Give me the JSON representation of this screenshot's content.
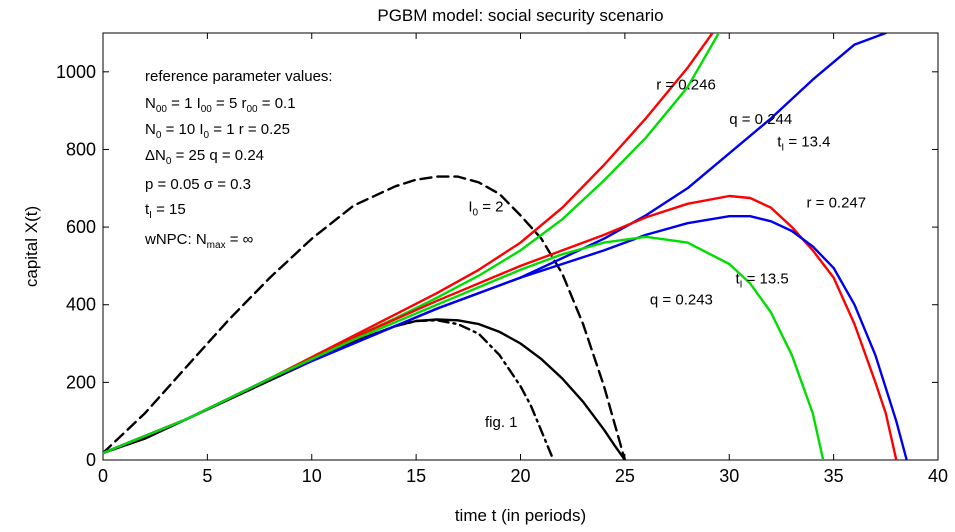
{
  "chart_data": {
    "type": "line",
    "title": "PGBM model: social security scenario",
    "xlabel": "time t (in periods)",
    "ylabel": "capital X(t)",
    "xlim": [
      0,
      40
    ],
    "ylim": [
      0,
      1100
    ],
    "xticks": [
      0,
      5,
      10,
      15,
      20,
      25,
      30,
      35,
      40
    ],
    "yticks": [
      0,
      200,
      400,
      600,
      800,
      1000
    ],
    "grid": false,
    "reference_box": {
      "heading": "reference parameter values:",
      "lines": [
        [
          {
            "t": "N"
          },
          {
            "t": "00",
            "sub": true
          },
          {
            "t": " = 1     I"
          },
          {
            "t": "00",
            "sub": true
          },
          {
            "t": " = 5   r"
          },
          {
            "t": "00",
            "sub": true
          },
          {
            "t": " = 0.1"
          }
        ],
        [
          {
            "t": "N"
          },
          {
            "t": "0",
            "sub": true
          },
          {
            "t": " =   10   I"
          },
          {
            "t": "0",
            "sub": true
          },
          {
            "t": " = 1   r =  0.25"
          }
        ],
        [
          {
            "t": "ΔN"
          },
          {
            "t": "0",
            "sub": true
          },
          {
            "t": " = 25    q = 0.24"
          }
        ],
        [
          {
            "t": "p = 0.05    σ = 0.3"
          }
        ],
        [
          {
            "t": "t"
          },
          {
            "t": "I",
            "sub": true
          },
          {
            "t": " = 15"
          }
        ],
        [
          {
            "t": "wNPC: N"
          },
          {
            "t": "max",
            "sub": true
          },
          {
            "t": " = ∞"
          }
        ]
      ]
    },
    "series": [
      {
        "label": "",
        "color": "#000000",
        "dash": "solid",
        "x": [
          0,
          2,
          4,
          6,
          8,
          10,
          12,
          14,
          15,
          16,
          17,
          18,
          19,
          20,
          21,
          22,
          23,
          24,
          24.5,
          25
        ],
        "y": [
          18,
          55,
          105,
          155,
          205,
          255,
          305,
          345,
          358,
          362,
          360,
          350,
          330,
          300,
          260,
          210,
          150,
          78,
          38,
          0
        ]
      },
      {
        "label": "fig. 1",
        "color": "#000000",
        "dash": "dashdot",
        "x": [
          14,
          15,
          16,
          17,
          18,
          19,
          20,
          20.5,
          21,
          21.5
        ],
        "y": [
          345,
          358,
          360,
          350,
          325,
          270,
          190,
          140,
          75,
          10
        ]
      },
      {
        "label": "I₀ = 2",
        "color": "#000000",
        "dash": "dashed",
        "x": [
          0,
          2,
          4,
          6,
          8,
          10,
          12,
          14,
          15,
          16,
          17,
          18,
          19,
          20,
          21,
          22,
          23,
          24,
          24.5,
          25
        ],
        "y": [
          18,
          120,
          240,
          360,
          470,
          570,
          655,
          705,
          722,
          730,
          730,
          715,
          685,
          630,
          570,
          480,
          350,
          190,
          95,
          0
        ]
      },
      {
        "label": "r = 0.246",
        "color": "#ff0000",
        "dash": "solid",
        "x": [
          0,
          4,
          8,
          12,
          14,
          16,
          18,
          20,
          22,
          24,
          26,
          28,
          29.2
        ],
        "y": [
          18,
          105,
          210,
          320,
          375,
          430,
          490,
          560,
          650,
          760,
          880,
          1010,
          1100
        ]
      },
      {
        "label": "q = 0.244",
        "color": "#00dd00",
        "dash": "solid",
        "x": [
          0,
          4,
          8,
          12,
          14,
          16,
          18,
          20,
          22,
          24,
          26,
          28,
          29.5
        ],
        "y": [
          18,
          105,
          210,
          315,
          365,
          418,
          475,
          540,
          620,
          720,
          830,
          960,
          1100
        ]
      },
      {
        "label": "tᵢ = 13.4",
        "color": "#0000ee",
        "dash": "solid",
        "x": [
          0,
          4,
          8,
          12,
          16,
          20,
          24,
          26,
          28,
          30,
          32,
          34,
          36,
          37.5
        ],
        "y": [
          18,
          105,
          210,
          300,
          390,
          470,
          570,
          630,
          700,
          790,
          880,
          980,
          1070,
          1100
        ]
      },
      {
        "label": "r = 0.247",
        "color": "#ff0000",
        "dash": "solid",
        "x": [
          0,
          4,
          8,
          12,
          16,
          20,
          24,
          26,
          28,
          30,
          31,
          32,
          33,
          34,
          35,
          36,
          37,
          37.5,
          38
        ],
        "y": [
          18,
          105,
          210,
          315,
          410,
          500,
          580,
          625,
          660,
          680,
          675,
          650,
          600,
          540,
          470,
          350,
          200,
          120,
          0
        ]
      },
      {
        "label": "tᵢ = 13.5",
        "color": "#0000ee",
        "dash": "solid",
        "x": [
          0,
          4,
          8,
          12,
          16,
          20,
          24,
          26,
          28,
          30,
          31,
          32,
          33,
          34,
          35,
          36,
          37,
          38,
          38.5
        ],
        "y": [
          18,
          105,
          210,
          300,
          390,
          470,
          540,
          580,
          610,
          628,
          628,
          615,
          590,
          550,
          495,
          400,
          270,
          100,
          0
        ]
      },
      {
        "label": "q = 0.243",
        "color": "#00dd00",
        "dash": "solid",
        "x": [
          0,
          4,
          8,
          12,
          16,
          20,
          22,
          24,
          26,
          28,
          30,
          31,
          32,
          33,
          34,
          34.5
        ],
        "y": [
          18,
          105,
          210,
          310,
          400,
          490,
          530,
          560,
          575,
          560,
          505,
          455,
          380,
          270,
          120,
          0
        ]
      }
    ],
    "annotations": [
      {
        "text": "r = 0.246",
        "x": 26.5,
        "y": 955
      },
      {
        "text": "q = 0.244",
        "x": 30.0,
        "y": 865
      },
      {
        "text": "t",
        "sub": "I",
        "rest": " = 13.4",
        "x": 32.3,
        "y": 808
      },
      {
        "text": "r = 0.247",
        "x": 33.7,
        "y": 650
      },
      {
        "text": "t",
        "sub": "I",
        "rest": " = 13.5",
        "x": 30.3,
        "y": 455
      },
      {
        "text": "q = 0.243",
        "x": 26.2,
        "y": 400
      },
      {
        "text": "I",
        "sub": "0",
        "rest": " = 2",
        "x": 17.5,
        "y": 640
      },
      {
        "text": "fig. 1",
        "x": 18.3,
        "y": 85
      }
    ]
  }
}
